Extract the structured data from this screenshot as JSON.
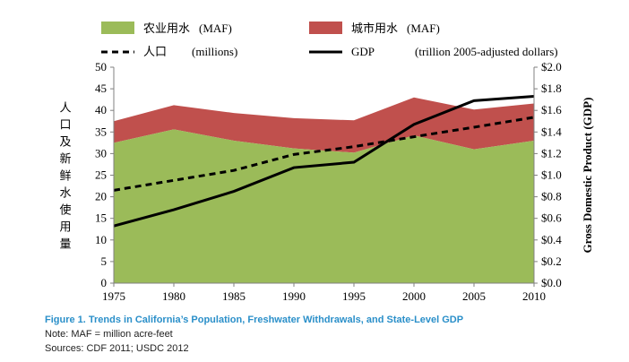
{
  "chart_data": {
    "type": "area",
    "x": [
      1975,
      1980,
      1985,
      1990,
      1995,
      2000,
      2005,
      2010
    ],
    "series": [
      {
        "name": "农业用水",
        "unit": "(MAF)",
        "kind": "stacked-area",
        "color": "#9bbb59",
        "values": [
          32.5,
          35.6,
          33.0,
          31.2,
          30.2,
          34.2,
          31.0,
          33.0
        ]
      },
      {
        "name": "城市用水",
        "unit": "(MAF)",
        "kind": "stacked-area",
        "color": "#c0504d",
        "values": [
          5.0,
          5.6,
          6.4,
          7.0,
          7.5,
          8.8,
          9.2,
          8.6
        ]
      },
      {
        "name": "人口",
        "unit": "(millions)",
        "kind": "dashed-line",
        "axis": "left",
        "values": [
          21.5,
          23.8,
          26.1,
          29.8,
          31.6,
          33.9,
          36.1,
          38.4
        ]
      },
      {
        "name": "GDP",
        "unit": "(trillion 2005-adjusted dollars)",
        "kind": "solid-line",
        "axis": "right",
        "values": [
          0.53,
          0.68,
          0.85,
          1.07,
          1.12,
          1.47,
          1.69,
          1.73
        ]
      }
    ],
    "yleft": {
      "label": "人口及新鲜水使用量",
      "lim": [
        0,
        50
      ],
      "ticks": [
        "0",
        "5",
        "10",
        "15",
        "20",
        "25",
        "30",
        "35",
        "40",
        "45",
        "50"
      ]
    },
    "yright": {
      "label": "Gross Domestic Product (GDP)",
      "lim": [
        0,
        2.0
      ],
      "ticks": [
        "$0.0",
        "$0.2",
        "$0.4",
        "$0.6",
        "$0.8",
        "$1.0",
        "$1.2",
        "$1.4",
        "$1.6",
        "$1.8",
        "$2.0"
      ]
    },
    "xticks": [
      "1975",
      "1980",
      "1985",
      "1990",
      "1995",
      "2000",
      "2005",
      "2010"
    ]
  },
  "caption": {
    "title": "Figure 1. Trends in California’s Population, Freshwater Withdrawals, and State-Level GDP",
    "note": "Note: MAF = million acre-feet",
    "sources": "Sources: CDF 2011; USDC 2012"
  }
}
